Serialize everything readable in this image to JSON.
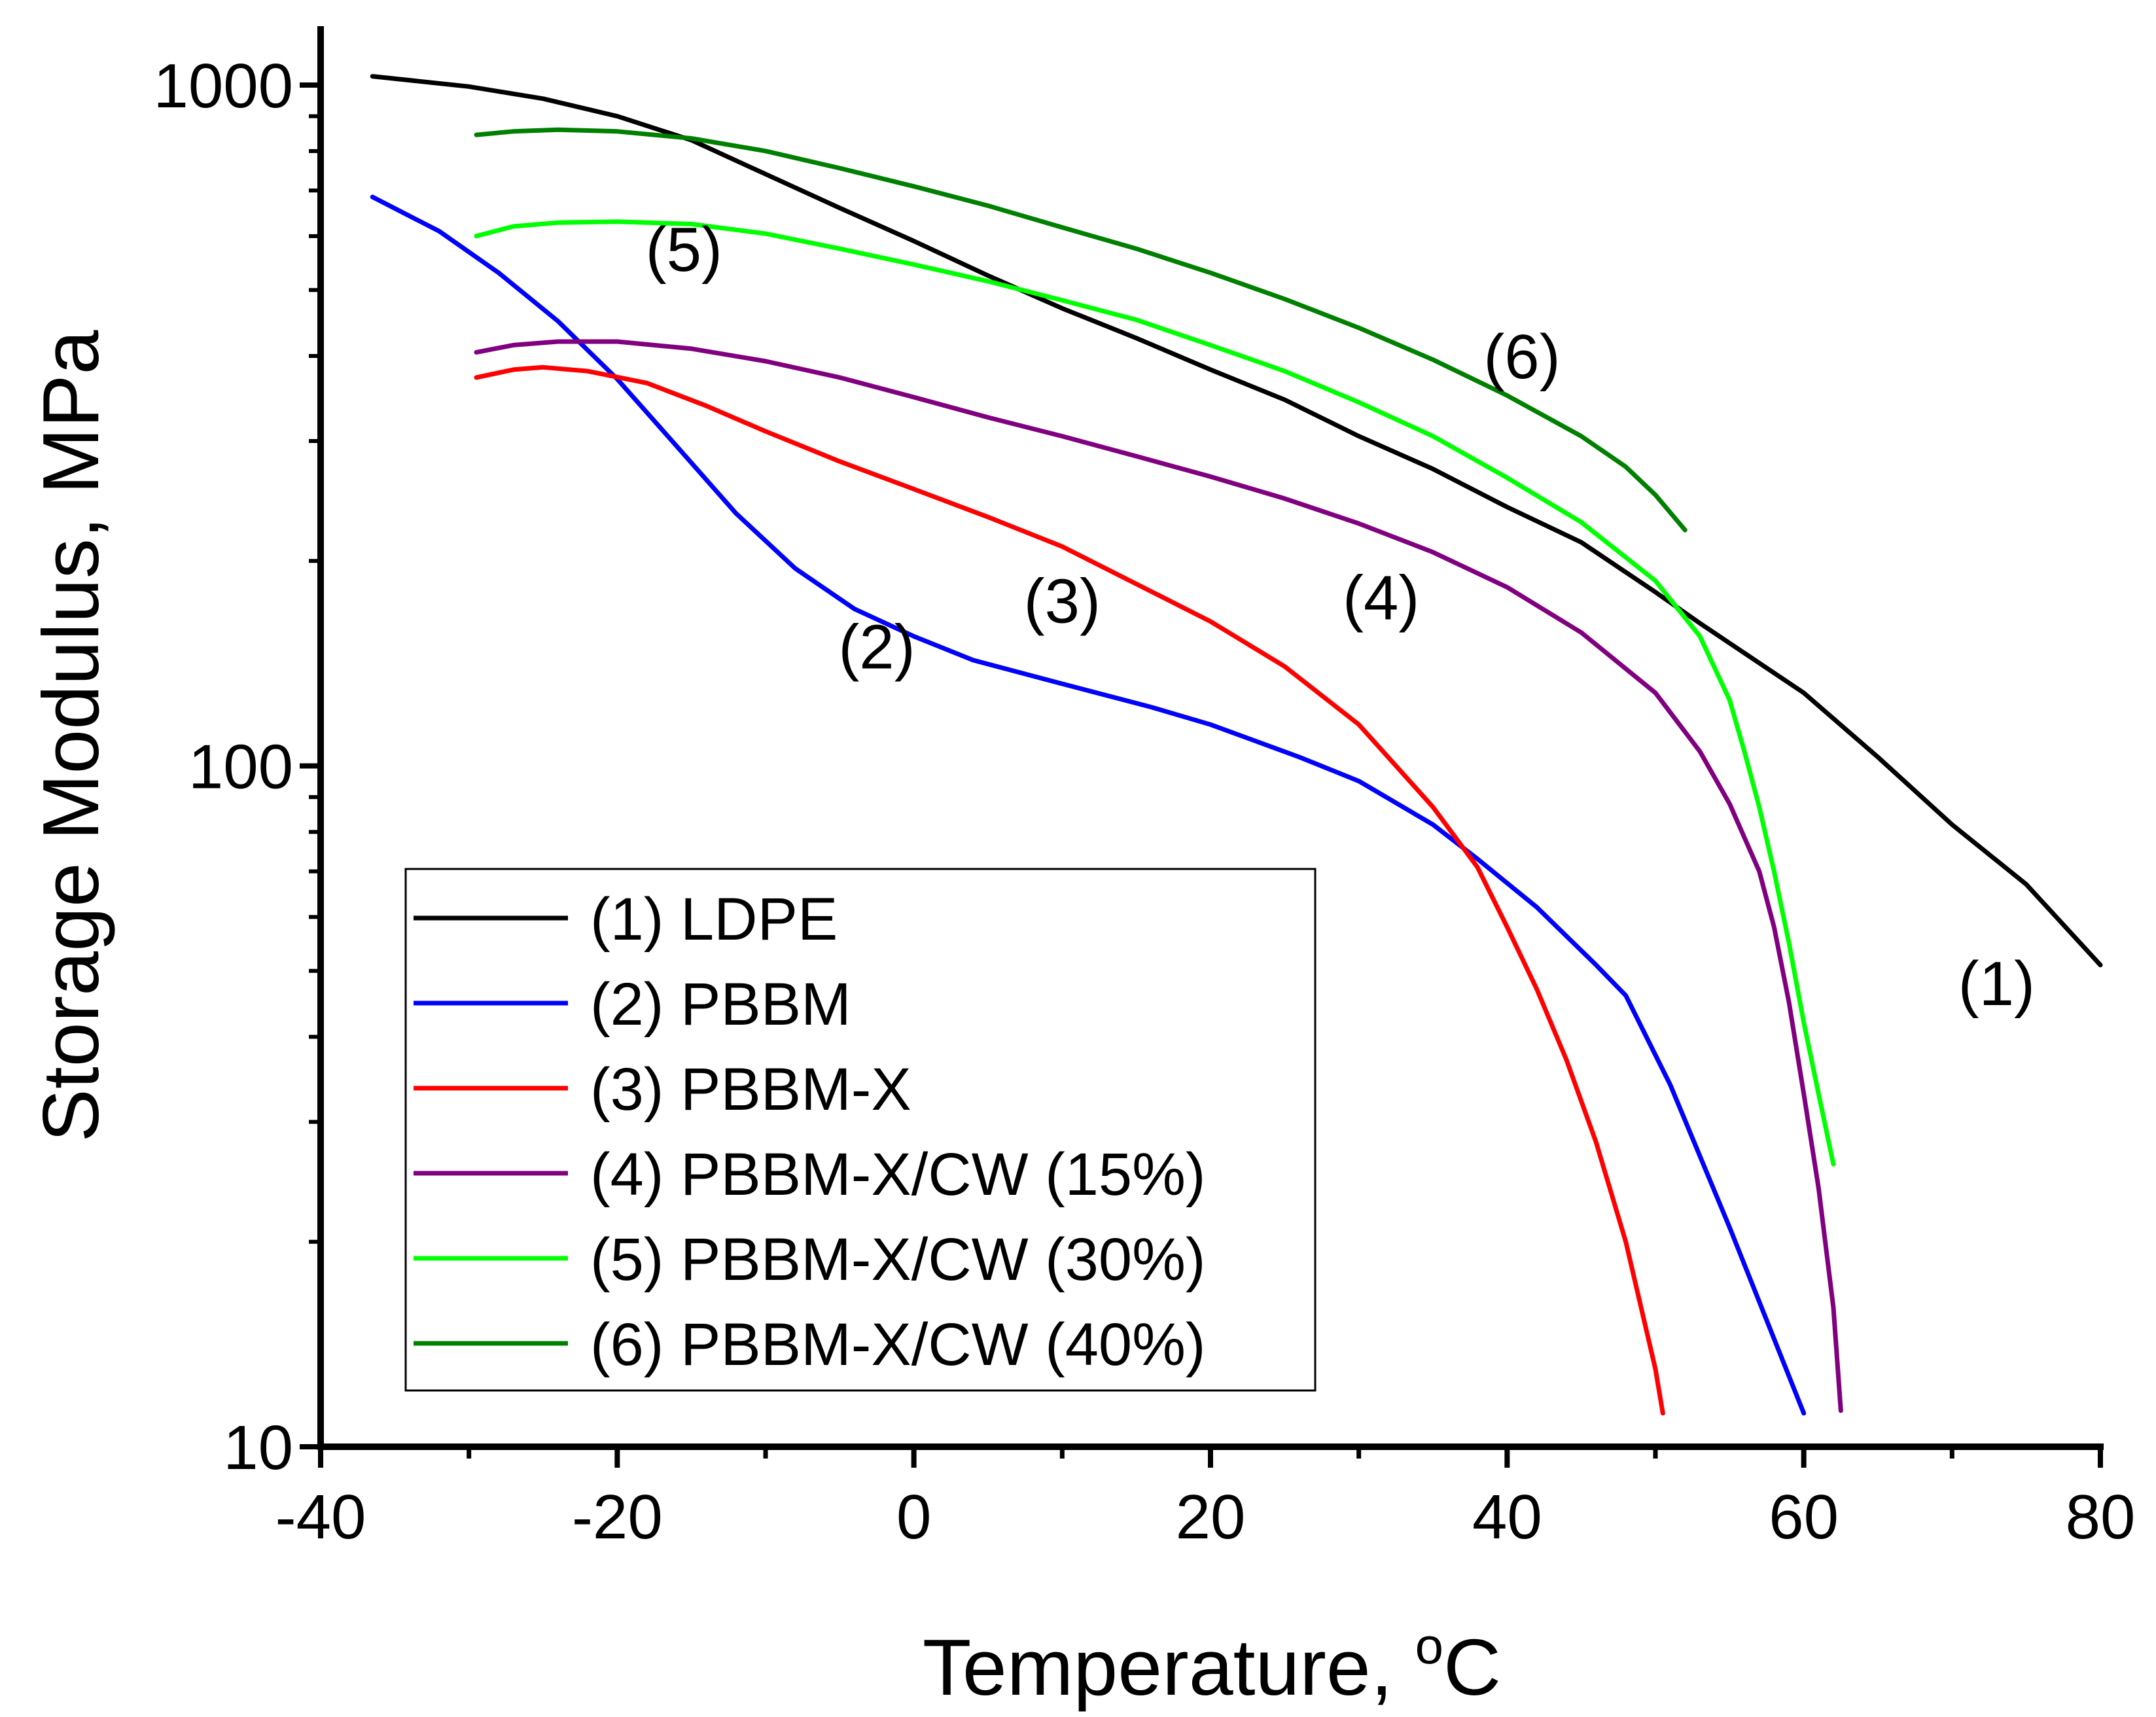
{
  "chart_data": {
    "type": "line",
    "title": "",
    "xlabel": "Temperature, °C",
    "xlabel_parts": {
      "text": "Temperature, ",
      "sup": "o",
      "unit": "C"
    },
    "ylabel": "Storage Modulus, MPa",
    "x_scale": "linear",
    "y_scale": "log",
    "xlim": [
      -40,
      80
    ],
    "ylim": [
      10,
      1000
    ],
    "grid": false,
    "legend_position": "bottom-left",
    "x_ticks": [
      -40,
      -20,
      0,
      20,
      40,
      60,
      80
    ],
    "x_tick_labels": [
      "-40",
      "-20",
      "0",
      "20",
      "40",
      "60",
      "80"
    ],
    "x_minor_ticks": [
      -30,
      -10,
      10,
      30,
      50,
      70
    ],
    "y_ticks": [
      10,
      100,
      1000
    ],
    "y_tick_labels": [
      "10",
      "100",
      "1000"
    ],
    "series": [
      {
        "name": "(1) LDPE",
        "color": "#000000",
        "points": [
          [
            -36.5,
            1030
          ],
          [
            -30,
            995
          ],
          [
            -25,
            955
          ],
          [
            -20,
            900
          ],
          [
            -15,
            830
          ],
          [
            -10,
            740
          ],
          [
            -5,
            660
          ],
          [
            0,
            590
          ],
          [
            5,
            525
          ],
          [
            10,
            470
          ],
          [
            15,
            425
          ],
          [
            20,
            382
          ],
          [
            25,
            345
          ],
          [
            30,
            305
          ],
          [
            35,
            273
          ],
          [
            40,
            240
          ],
          [
            45,
            213
          ],
          [
            50,
            180
          ],
          [
            53,
            162
          ],
          [
            60,
            128
          ],
          [
            65,
            103
          ],
          [
            70,
            82
          ],
          [
            75,
            67
          ],
          [
            80,
            51
          ]
        ]
      },
      {
        "name": "(2) PBBM",
        "color": "#0000ff",
        "points": [
          [
            -36.5,
            685
          ],
          [
            -32,
            610
          ],
          [
            -28,
            530
          ],
          [
            -24,
            450
          ],
          [
            -20,
            370
          ],
          [
            -16,
            295
          ],
          [
            -12,
            235
          ],
          [
            -8,
            195
          ],
          [
            -4,
            170
          ],
          [
            0,
            155
          ],
          [
            4,
            143
          ],
          [
            10,
            132
          ],
          [
            16,
            122
          ],
          [
            20,
            115
          ],
          [
            26,
            103
          ],
          [
            30,
            95
          ],
          [
            35,
            82
          ],
          [
            38,
            73
          ],
          [
            42,
            62
          ],
          [
            46,
            51
          ],
          [
            48,
            46
          ],
          [
            51,
            34
          ],
          [
            55,
            21
          ],
          [
            60,
            11.2
          ]
        ]
      },
      {
        "name": "(3) PBBM-X",
        "color": "#ff0000",
        "points": [
          [
            -29.5,
            372
          ],
          [
            -27,
            382
          ],
          [
            -25,
            385
          ],
          [
            -22,
            380
          ],
          [
            -18,
            365
          ],
          [
            -14,
            338
          ],
          [
            -10,
            310
          ],
          [
            -5,
            280
          ],
          [
            0,
            255
          ],
          [
            5,
            232
          ],
          [
            10,
            210
          ],
          [
            15,
            185
          ],
          [
            20,
            163
          ],
          [
            25,
            140
          ],
          [
            30,
            115
          ],
          [
            35,
            87
          ],
          [
            38,
            71
          ],
          [
            40,
            58
          ],
          [
            42,
            47
          ],
          [
            44,
            37
          ],
          [
            46,
            28
          ],
          [
            48,
            20
          ],
          [
            50,
            13
          ],
          [
            50.5,
            11.2
          ]
        ]
      },
      {
        "name": "(4) PBBM-X/CW (15%)",
        "color": "#800080",
        "points": [
          [
            -29.5,
            405
          ],
          [
            -27,
            415
          ],
          [
            -24,
            420
          ],
          [
            -20,
            420
          ],
          [
            -15,
            410
          ],
          [
            -10,
            393
          ],
          [
            -5,
            372
          ],
          [
            0,
            348
          ],
          [
            5,
            325
          ],
          [
            10,
            305
          ],
          [
            15,
            285
          ],
          [
            20,
            266
          ],
          [
            25,
            247
          ],
          [
            30,
            227
          ],
          [
            35,
            206
          ],
          [
            40,
            183
          ],
          [
            45,
            157
          ],
          [
            50,
            128
          ],
          [
            53,
            105
          ],
          [
            55,
            88
          ],
          [
            57,
            70
          ],
          [
            58,
            58
          ],
          [
            59,
            45
          ],
          [
            60,
            33
          ],
          [
            61,
            24
          ],
          [
            62,
            16
          ],
          [
            62.5,
            11.3
          ]
        ]
      },
      {
        "name": "(5) PBBM-X/CW (30%)",
        "color": "#00ff00",
        "points": [
          [
            -29.5,
            600
          ],
          [
            -27,
            620
          ],
          [
            -24,
            628
          ],
          [
            -20,
            630
          ],
          [
            -15,
            625
          ],
          [
            -10,
            605
          ],
          [
            -5,
            575
          ],
          [
            0,
            545
          ],
          [
            5,
            515
          ],
          [
            10,
            483
          ],
          [
            15,
            452
          ],
          [
            20,
            415
          ],
          [
            25,
            380
          ],
          [
            30,
            342
          ],
          [
            35,
            305
          ],
          [
            40,
            265
          ],
          [
            45,
            228
          ],
          [
            50,
            187
          ],
          [
            53,
            155
          ],
          [
            55,
            125
          ],
          [
            56,
            105
          ],
          [
            57,
            87
          ],
          [
            58,
            70
          ],
          [
            59,
            55
          ],
          [
            60,
            42
          ],
          [
            61,
            33
          ],
          [
            62,
            26
          ]
        ]
      },
      {
        "name": "(6) PBBM-X/CW (40%)",
        "color": "#008000",
        "points": [
          [
            -29.5,
            845
          ],
          [
            -27,
            855
          ],
          [
            -24,
            860
          ],
          [
            -20,
            855
          ],
          [
            -15,
            835
          ],
          [
            -10,
            800
          ],
          [
            -5,
            755
          ],
          [
            0,
            710
          ],
          [
            5,
            665
          ],
          [
            10,
            618
          ],
          [
            15,
            575
          ],
          [
            20,
            530
          ],
          [
            25,
            485
          ],
          [
            30,
            440
          ],
          [
            35,
            395
          ],
          [
            40,
            350
          ],
          [
            45,
            305
          ],
          [
            48,
            275
          ],
          [
            50,
            250
          ],
          [
            52,
            222
          ]
        ]
      }
    ],
    "annotations": [
      {
        "text": "(1)",
        "x": 73,
        "y": 48
      },
      {
        "text": "(2)",
        "x": -2.5,
        "y": 150
      },
      {
        "text": "(3)",
        "x": 10,
        "y": 175
      },
      {
        "text": "(4)",
        "x": 31.5,
        "y": 177
      },
      {
        "text": "(5)",
        "x": -15.5,
        "y": 575
      },
      {
        "text": "(6)",
        "x": 41,
        "y": 400
      }
    ]
  }
}
